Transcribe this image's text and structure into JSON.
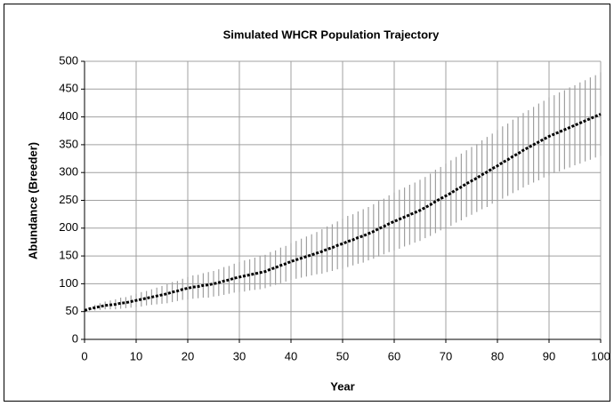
{
  "chart_data": {
    "type": "line",
    "title": "Simulated WHCR Population Trajectory",
    "x_label": "Year",
    "y_label": "Abundance (Breeder)",
    "xlim": [
      0,
      100
    ],
    "xticks": [
      0,
      10,
      20,
      30,
      40,
      50,
      60,
      70,
      80,
      90,
      100
    ],
    "ylim": [
      0,
      500
    ],
    "yticks": [
      0,
      50,
      100,
      150,
      200,
      250,
      300,
      350,
      400,
      450,
      500
    ],
    "grid": true,
    "x": [
      0,
      1,
      2,
      3,
      4,
      5,
      6,
      7,
      8,
      9,
      10,
      11,
      12,
      13,
      14,
      15,
      16,
      17,
      18,
      19,
      20,
      21,
      22,
      23,
      24,
      25,
      26,
      27,
      28,
      29,
      30,
      31,
      32,
      33,
      34,
      35,
      36,
      37,
      38,
      39,
      40,
      41,
      42,
      43,
      44,
      45,
      46,
      47,
      48,
      49,
      50,
      51,
      52,
      53,
      54,
      55,
      56,
      57,
      58,
      59,
      60,
      61,
      62,
      63,
      64,
      65,
      66,
      67,
      68,
      69,
      70,
      71,
      72,
      73,
      74,
      75,
      76,
      77,
      78,
      79,
      80,
      81,
      82,
      83,
      84,
      85,
      86,
      87,
      88,
      89,
      90,
      91,
      92,
      93,
      94,
      95,
      96,
      97,
      98,
      99,
      100
    ],
    "series": [
      {
        "color": "#000000",
        "error_color": "#a0a0a0",
        "values": [
          52,
          55,
          57,
          59,
          61,
          62,
          63,
          65,
          66,
          68,
          70,
          72,
          74,
          76,
          78,
          80,
          82,
          85,
          87,
          90,
          92,
          94,
          95,
          97,
          98,
          100,
          102,
          105,
          107,
          110,
          112,
          114,
          116,
          118,
          120,
          122,
          126,
          129,
          133,
          136,
          140,
          143,
          146,
          149,
          152,
          155,
          158,
          162,
          165,
          169,
          172,
          176,
          179,
          183,
          186,
          190,
          194,
          199,
          203,
          208,
          212,
          216,
          220,
          224,
          228,
          232,
          237,
          242,
          248,
          253,
          258,
          263,
          269,
          274,
          280,
          285,
          290,
          296,
          301,
          307,
          312,
          318,
          323,
          329,
          334,
          340,
          345,
          350,
          355,
          360,
          365,
          369,
          373,
          377,
          381,
          385,
          389,
          393,
          397,
          401,
          405
        ],
        "errors": [
          0,
          3,
          5,
          6,
          7,
          8,
          9,
          10,
          10,
          11,
          12,
          13,
          13,
          14,
          15,
          16,
          17,
          18,
          18,
          19,
          20,
          21,
          21,
          22,
          23,
          23,
          24,
          25,
          25,
          26,
          27,
          28,
          28,
          29,
          30,
          30,
          31,
          31,
          32,
          32,
          33,
          34,
          35,
          36,
          37,
          38,
          40,
          41,
          42,
          43,
          45,
          46,
          46,
          47,
          48,
          48,
          49,
          50,
          50,
          51,
          52,
          53,
          53,
          54,
          54,
          55,
          55,
          56,
          57,
          57,
          58,
          59,
          59,
          60,
          60,
          61,
          61,
          62,
          63,
          63,
          64,
          65,
          65,
          66,
          66,
          67,
          67,
          68,
          69,
          69,
          70,
          70,
          71,
          71,
          72,
          72,
          73,
          73,
          74,
          74,
          75
        ]
      }
    ]
  }
}
